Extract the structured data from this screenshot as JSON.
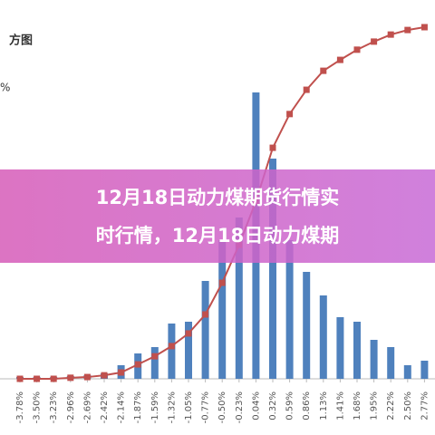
{
  "chart_data": {
    "type": "bar",
    "title": "方图",
    "subtitle": "%",
    "categories": [
      "-3.78%",
      "-3.50%",
      "-3.23%",
      "-2.96%",
      "-2.69%",
      "-2.42%",
      "-2.14%",
      "-1.87%",
      "-1.59%",
      "-1.32%",
      "-1.05%",
      "-0.77%",
      "-0.50%",
      "-0.23%",
      "0.04%",
      "0.32%",
      "0.59%",
      "0.86%",
      "1.13%",
      "1.41%",
      "1.68%",
      "1.95%",
      "2.22%",
      "2.50%",
      "2.77%"
    ],
    "series": [
      {
        "type": "bar",
        "color": "#4f81bd",
        "values": [
          2,
          2,
          2,
          3,
          4,
          6,
          15,
          28,
          35,
          61,
          63,
          108,
          153,
          178,
          316,
          243,
          153,
          118,
          92,
          68,
          63,
          43,
          35,
          15,
          20
        ]
      },
      {
        "type": "line",
        "color": "#c0504d",
        "axis": "y2",
        "values": [
          0,
          0,
          0,
          0.3,
          0.5,
          1,
          1.8,
          4.1,
          6.4,
          9.3,
          12.9,
          18.3,
          27.3,
          38.1,
          50.5,
          65.7,
          75.3,
          82.2,
          87.6,
          90.7,
          93.6,
          95.9,
          97.9,
          99.2,
          100
        ]
      }
    ],
    "ylim": [
      0,
      388
    ],
    "y2lim": [
      0,
      100
    ]
  },
  "banner": {
    "lines": [
      "12月18日动力煤期货行情实",
      "时行情，12月18日动力煤期"
    ]
  }
}
